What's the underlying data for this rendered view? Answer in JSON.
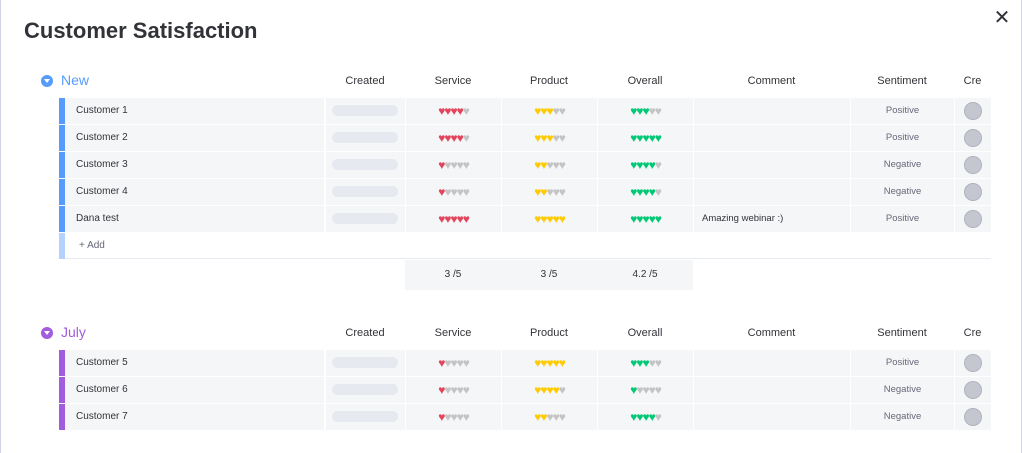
{
  "title": "Customer Satisfaction",
  "columns": {
    "created": "Created",
    "service": "Service",
    "product": "Product",
    "overall": "Overall",
    "comment": "Comment",
    "sentiment": "Sentiment",
    "creator": "Cre"
  },
  "colors": {
    "new_group": "#579bfc",
    "july_group": "#a25ddc",
    "service_heart": "#e2445c",
    "product_heart": "#ffcb00",
    "overall_heart": "#00c875",
    "empty_heart": "#c4c4c4"
  },
  "groups": [
    {
      "name": "New",
      "color_key": "new_group",
      "add_label": "+ Add",
      "rows": [
        {
          "name": "Customer 1",
          "service": 4,
          "product": 3,
          "overall": 3,
          "comment": "",
          "sentiment": "Positive"
        },
        {
          "name": "Customer 2",
          "service": 4,
          "product": 3,
          "overall": 5,
          "comment": "",
          "sentiment": "Positive"
        },
        {
          "name": "Customer 3",
          "service": 1,
          "product": 2,
          "overall": 4,
          "comment": "",
          "sentiment": "Negative"
        },
        {
          "name": "Customer 4",
          "service": 1,
          "product": 2,
          "overall": 4,
          "comment": "",
          "sentiment": "Negative"
        },
        {
          "name": "Dana test",
          "service": 5,
          "product": 5,
          "overall": 5,
          "comment": "Amazing webinar :)",
          "sentiment": "Positive"
        }
      ],
      "summary": {
        "service": "3  /5",
        "product": "3  /5",
        "overall": "4.2  /5"
      }
    },
    {
      "name": "July",
      "color_key": "july_group",
      "rows": [
        {
          "name": "Customer 5",
          "service": 1,
          "product": 5,
          "overall": 3,
          "comment": "",
          "sentiment": "Positive"
        },
        {
          "name": "Customer 6",
          "service": 1,
          "product": 4,
          "overall": 1,
          "comment": "",
          "sentiment": "Negative"
        },
        {
          "name": "Customer 7",
          "service": 1,
          "product": 2,
          "overall": 4,
          "comment": "",
          "sentiment": "Negative"
        }
      ]
    }
  ],
  "rating_max": 5
}
